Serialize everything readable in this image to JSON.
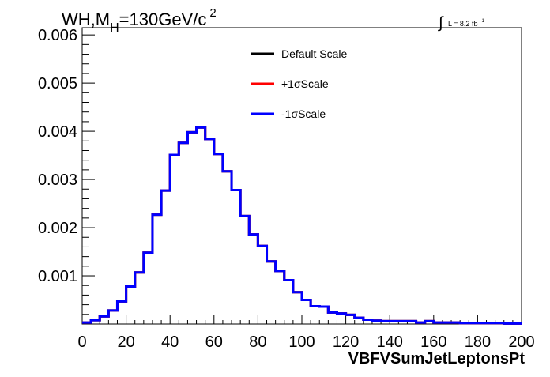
{
  "chart_data": {
    "type": "line",
    "title_parts": {
      "main": "WH,M",
      "sub": "H",
      "rest": "=130GeV/c",
      "sup": "2"
    },
    "lumi_label": {
      "integral": "∫",
      "text": "L = 8.2 fb",
      "sup": "-1"
    },
    "xlabel": "VBFVSumJetLeptonsPt",
    "ylabel": "",
    "xlim": [
      0,
      200
    ],
    "ylim": [
      0,
      0.00615
    ],
    "x_ticks": [
      "0",
      "20",
      "40",
      "60",
      "80",
      "100",
      "120",
      "140",
      "160",
      "180",
      "200"
    ],
    "y_ticks": [
      "0.001",
      "0.002",
      "0.003",
      "0.004",
      "0.005",
      "0.006"
    ],
    "grid": false,
    "legend_position": "top-right",
    "bin_width": 4,
    "bin_low_edges": [
      0,
      4,
      8,
      12,
      16,
      20,
      24,
      28,
      32,
      36,
      40,
      44,
      48,
      52,
      56,
      60,
      64,
      68,
      72,
      76,
      80,
      84,
      88,
      92,
      96,
      100,
      104,
      108,
      112,
      116,
      120,
      124,
      128,
      132,
      136,
      140,
      144,
      148,
      152,
      156,
      160,
      164,
      168,
      172,
      176,
      180,
      184,
      188,
      192,
      196
    ],
    "series": [
      {
        "name": "Default Scale",
        "color": "#000000",
        "values": [
          3e-05,
          8e-05,
          0.00016,
          0.00028,
          0.00047,
          0.00078,
          0.00107,
          0.00148,
          0.00227,
          0.00277,
          0.00351,
          0.00376,
          0.00398,
          0.00408,
          0.00384,
          0.00353,
          0.00317,
          0.00278,
          0.00224,
          0.00186,
          0.00162,
          0.0013,
          0.0011,
          0.00091,
          0.00066,
          0.0005,
          0.00037,
          0.00036,
          0.00024,
          0.00022,
          0.00019,
          0.00013,
          9e-05,
          7e-05,
          6e-05,
          6e-05,
          6e-05,
          6e-05,
          3e-05,
          6e-05,
          3e-05,
          3e-05,
          3e-05,
          2e-05,
          2e-05,
          2e-05,
          2e-05,
          2e-05,
          1e-05,
          1e-05
        ]
      },
      {
        "name": "+1σScale",
        "color": "#ff0000",
        "values": [
          3e-05,
          8e-05,
          0.00016,
          0.00028,
          0.00047,
          0.00078,
          0.00107,
          0.00148,
          0.00227,
          0.00277,
          0.00351,
          0.00376,
          0.00398,
          0.00408,
          0.00384,
          0.00353,
          0.00317,
          0.00278,
          0.00224,
          0.00186,
          0.00162,
          0.0013,
          0.0011,
          0.00091,
          0.00066,
          0.0005,
          0.00037,
          0.00036,
          0.00024,
          0.00022,
          0.00019,
          0.00013,
          9e-05,
          7e-05,
          6e-05,
          6e-05,
          6e-05,
          6e-05,
          3e-05,
          6e-05,
          3e-05,
          3e-05,
          3e-05,
          2e-05,
          2e-05,
          2e-05,
          2e-05,
          2e-05,
          1e-05,
          1e-05
        ]
      },
      {
        "name": "-1σScale",
        "color": "#0000ff",
        "values": [
          3e-05,
          8e-05,
          0.00016,
          0.00028,
          0.00047,
          0.00078,
          0.00107,
          0.00148,
          0.00227,
          0.00277,
          0.00351,
          0.00376,
          0.00398,
          0.00408,
          0.00384,
          0.00353,
          0.00317,
          0.00278,
          0.00224,
          0.00186,
          0.00162,
          0.0013,
          0.0011,
          0.00091,
          0.00066,
          0.0005,
          0.00037,
          0.00036,
          0.00024,
          0.00022,
          0.00019,
          0.00013,
          9e-05,
          7e-05,
          6e-05,
          6e-05,
          6e-05,
          6e-05,
          3e-05,
          6e-05,
          3e-05,
          3e-05,
          3e-05,
          2e-05,
          2e-05,
          2e-05,
          2e-05,
          2e-05,
          1e-05,
          1e-05
        ]
      }
    ]
  }
}
